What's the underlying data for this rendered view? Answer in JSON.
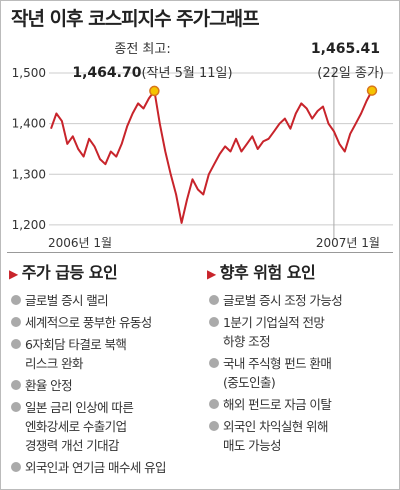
{
  "chart_data": {
    "type": "line",
    "title": "작년 이후 코스피지수 주가그래프",
    "categories": [
      "2006년 1월",
      null,
      null,
      null,
      null,
      null,
      null,
      null,
      null,
      null,
      null,
      null,
      null,
      null,
      null,
      null,
      null,
      null,
      null,
      null,
      null,
      null,
      null,
      null,
      null,
      null,
      null,
      null,
      null,
      null,
      null,
      null,
      null,
      null,
      null,
      null,
      null,
      null,
      null,
      null,
      null,
      null,
      null,
      null,
      null,
      null,
      null,
      null,
      null,
      null,
      null,
      null,
      "2007년 1월",
      null,
      null,
      null,
      null,
      null,
      null,
      null
    ],
    "values": [
      1390,
      1420,
      1405,
      1360,
      1375,
      1350,
      1335,
      1370,
      1355,
      1330,
      1320,
      1345,
      1335,
      1360,
      1395,
      1420,
      1440,
      1430,
      1450,
      1464.7,
      1400,
      1345,
      1300,
      1260,
      1203.86,
      1250,
      1290,
      1270,
      1260,
      1300,
      1320,
      1340,
      1355,
      1345,
      1370,
      1345,
      1360,
      1375,
      1350,
      1365,
      1370,
      1385,
      1400,
      1410,
      1390,
      1420,
      1440,
      1430,
      1410,
      1425,
      1434,
      1400,
      1385,
      1360,
      1345,
      1380,
      1400,
      1420,
      1445,
      1465.41
    ],
    "color": "#c8242b",
    "ylim": [
      1180,
      1510
    ],
    "yticks": [
      {
        "value": 1200,
        "label": "1,200"
      },
      {
        "value": 1300,
        "label": "1,300"
      },
      {
        "value": 1400,
        "label": "1,400"
      },
      {
        "value": 1500,
        "label": "1,500"
      }
    ],
    "grid": true,
    "annotations": [
      {
        "title": "종전 최고:",
        "value_label": "1,464.70",
        "note": "(작년 5월 11일)",
        "index": 19
      },
      {
        "value_label": "1,465.41",
        "note": "(22일 종가)",
        "index": 59
      }
    ]
  },
  "rise_factors": {
    "title": "주가 급등 요인",
    "items": [
      [
        "글로벌 증시 랠리"
      ],
      [
        "세계적으로 풍부한 유동성"
      ],
      [
        "6자회담 타결로 북핵",
        "리스크 완화"
      ],
      [
        "환율 안정"
      ],
      [
        "일본 금리 인상에 따른",
        "엔화강세로 수출기업",
        "경쟁력 개선 기대감"
      ],
      [
        "외국인과 연기금 매수세 유입"
      ]
    ]
  },
  "risk_factors": {
    "title": "향후 위험 요인",
    "items": [
      [
        "글로벌 증시 조정 가능성"
      ],
      [
        "1분기 기업실적 전망",
        "하향 조정"
      ],
      [
        "국내 주식형 펀드 환매",
        "(중도인출)"
      ],
      [
        "해외 펀드로 자금 이탈"
      ],
      [
        "외국인 차익실현 위해",
        "매도 가능성"
      ]
    ]
  }
}
